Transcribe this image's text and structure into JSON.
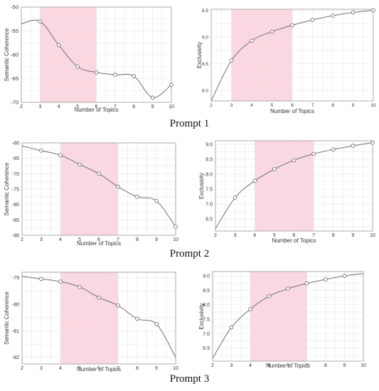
{
  "figure": {
    "captions": [
      "Prompt 1",
      "Prompt 2",
      "Prompt 3"
    ],
    "colors": {
      "highlight": "#fbd7e0",
      "line": "#707070",
      "marker_fill": "#ffffff",
      "grid": "#e6e6e6",
      "axis": "#9a9a9a",
      "text": "#333333"
    }
  },
  "chart_data": [
    {
      "type": "line",
      "title": "",
      "xlabel": "Number of Topics",
      "ylabel": "Semantic Coherence",
      "x": [
        2,
        3,
        4,
        5,
        6,
        7,
        8,
        9,
        10
      ],
      "series": [
        {
          "values": [
            -53.5,
            -53,
            -58,
            -62.5,
            -63.7,
            -64.2,
            -64.5,
            -69,
            -66.3
          ]
        }
      ],
      "xlim": [
        2,
        10
      ],
      "ylim": [
        -70,
        -50
      ],
      "xticks": [
        2,
        3,
        4,
        5,
        6,
        7,
        8,
        9,
        10
      ],
      "yticks": [
        -70,
        -65,
        -60,
        -55,
        -50
      ],
      "ytick_labels": [
        "-70",
        "-65",
        "-60",
        "-55",
        "-50"
      ],
      "highlight_range": [
        3,
        6
      ],
      "grid": true,
      "markers_x": [
        3,
        4,
        5,
        6,
        7,
        8,
        9,
        10
      ]
    },
    {
      "type": "line",
      "title": "",
      "xlabel": "Number of Topics",
      "ylabel": "Exclusivity",
      "x": [
        2,
        3,
        4,
        5,
        6,
        7,
        8,
        9,
        10
      ],
      "series": [
        {
          "values": [
            7.8,
            8.56,
            8.93,
            9.1,
            9.22,
            9.32,
            9.4,
            9.46,
            9.5
          ]
        }
      ],
      "xlim": [
        2,
        10
      ],
      "ylim": [
        7.8,
        9.52
      ],
      "xticks": [
        2,
        3,
        4,
        5,
        6,
        7,
        8,
        9,
        10
      ],
      "yticks": [
        8.0,
        8.5,
        9.0,
        9.5
      ],
      "ytick_labels": [
        "8.0",
        "8.5",
        "9.0",
        "9.5"
      ],
      "highlight_range": [
        3,
        6
      ],
      "grid": true,
      "markers_x": [
        3,
        4,
        5,
        6,
        7,
        8,
        9,
        10
      ]
    },
    {
      "type": "line",
      "title": "",
      "xlabel": "Number of Topics",
      "ylabel": "Semantic Coherence",
      "x": [
        2,
        3,
        4,
        5,
        6,
        7,
        8,
        9,
        10
      ],
      "series": [
        {
          "values": [
            -61,
            -62.5,
            -64,
            -67,
            -70,
            -74.2,
            -77.5,
            -78.8,
            -87.2
          ]
        }
      ],
      "xlim": [
        2,
        10
      ],
      "ylim": [
        -90,
        -60
      ],
      "xticks": [
        2,
        3,
        4,
        5,
        6,
        7,
        8,
        9,
        10
      ],
      "yticks": [
        -90,
        -85,
        -80,
        -75,
        -70,
        -65,
        -60
      ],
      "ytick_labels": [
        "-90",
        "-85",
        "-80",
        "-75",
        "-70",
        "-65",
        "-60"
      ],
      "highlight_range": [
        4,
        7
      ],
      "grid": true,
      "markers_x": [
        3,
        4,
        5,
        6,
        7,
        8,
        9,
        10
      ]
    },
    {
      "type": "line",
      "title": "",
      "xlabel": "Number of Topics",
      "ylabel": "Exclusivity",
      "x": [
        2,
        3,
        4,
        5,
        6,
        7,
        8,
        9,
        10
      ],
      "series": [
        {
          "values": [
            6.18,
            7.22,
            7.78,
            8.17,
            8.47,
            8.68,
            8.83,
            8.95,
            9.06
          ]
        }
      ],
      "xlim": [
        2,
        10
      ],
      "ylim": [
        6.1,
        9.12
      ],
      "xticks": [
        2,
        3,
        4,
        5,
        6,
        7,
        8,
        9,
        10
      ],
      "yticks": [
        6.5,
        7.0,
        7.5,
        8.0,
        8.5,
        9.0
      ],
      "ytick_labels": [
        "6.5",
        "7.0",
        "7.5",
        "8.0",
        "8.5",
        "9.0"
      ],
      "highlight_range": [
        4,
        7
      ],
      "grid": true,
      "markers_x": [
        3,
        4,
        5,
        6,
        7,
        8,
        9,
        10
      ]
    },
    {
      "type": "line",
      "title": "",
      "xlabel": "Number of Topics",
      "ylabel": "Semantic Coherence",
      "x": [
        2,
        3,
        4,
        5,
        6,
        7,
        8,
        9,
        10
      ],
      "series": [
        {
          "values": [
            -78.95,
            -79.05,
            -79.15,
            -79.35,
            -79.75,
            -80.05,
            -80.55,
            -80.75,
            -82.0
          ]
        }
      ],
      "xlim": [
        2,
        10
      ],
      "ylim": [
        -82.25,
        -78.8
      ],
      "xticks": [
        2,
        3,
        4,
        5,
        6,
        7,
        8,
        9,
        10
      ],
      "yticks": [
        -82,
        -81,
        -80,
        -79
      ],
      "ytick_labels": [
        "-82",
        "-81",
        "-80",
        "-79"
      ],
      "highlight_range": [
        4,
        7
      ],
      "grid": true,
      "markers_x": [
        3,
        4,
        5,
        6,
        7,
        8,
        9
      ]
    },
    {
      "type": "line",
      "title": "",
      "xlabel": "Number of Topics",
      "ylabel": "Exclusivity",
      "x": [
        2,
        3,
        4,
        5,
        6,
        7,
        8,
        9,
        10
      ],
      "series": [
        {
          "values": [
            6.15,
            7.22,
            7.85,
            8.3,
            8.56,
            8.74,
            8.88,
            9.0,
            9.08
          ]
        }
      ],
      "xlim": [
        2,
        10
      ],
      "ylim": [
        6.05,
        9.15
      ],
      "xticks": [
        2,
        3,
        4,
        5,
        6,
        7,
        8,
        9,
        10
      ],
      "yticks": [
        6.5,
        7.0,
        7.5,
        8.0,
        8.5,
        9.0
      ],
      "ytick_labels": [
        "6.5",
        "7.0",
        "7.5",
        "8.0",
        "8.5",
        "9.0"
      ],
      "highlight_range": [
        4,
        7
      ],
      "grid": true,
      "markers_x": [
        3,
        4,
        5,
        6,
        7,
        8,
        9
      ]
    }
  ]
}
